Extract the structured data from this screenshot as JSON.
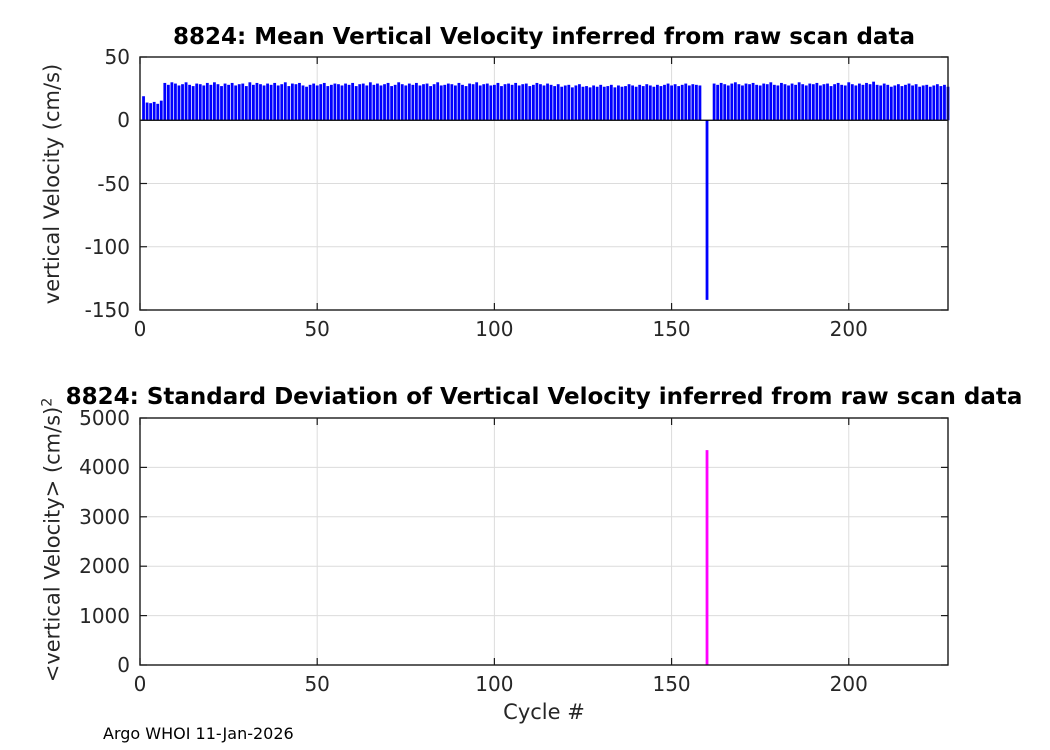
{
  "figure": {
    "footer": "Argo WHOI 11-Jan-2026",
    "colors": {
      "bar_blue": "#0000ff",
      "bar_magenta": "#ff00ff",
      "axis": "#1a1a1a",
      "grid": "#dcdcdc",
      "text": "#262626"
    }
  },
  "chart_data": [
    {
      "type": "bar",
      "title": "8824: Mean Vertical Velocity inferred from raw scan data",
      "ylabel": "vertical Velocity (cm/s)",
      "xlabel": "",
      "xlim": [
        0,
        228
      ],
      "ylim": [
        -150,
        50
      ],
      "xticks": [
        0,
        50,
        100,
        150,
        200
      ],
      "yticks": [
        -150,
        -100,
        -50,
        0,
        50
      ],
      "grid": true,
      "bar_color": "#0000ff",
      "x_start": 1,
      "values": [
        19,
        14,
        13.5,
        14.5,
        13,
        15.5,
        29.5,
        28,
        30,
        29,
        27.5,
        28.5,
        30,
        28,
        27,
        29,
        28.5,
        27.5,
        29.5,
        28,
        30,
        28.5,
        27,
        29,
        28,
        29.5,
        27.5,
        28.5,
        29,
        27,
        30,
        28,
        29.5,
        28.5,
        27.5,
        29,
        28,
        29.5,
        27.5,
        28.5,
        30,
        27,
        29,
        28.5,
        29.5,
        27.5,
        26.5,
        28,
        29,
        27.5,
        28.5,
        29.5,
        27,
        28,
        29,
        28.5,
        27.5,
        29,
        28,
        29.5,
        27,
        28.5,
        29,
        27.5,
        30,
        28,
        29,
        27.5,
        28.5,
        29.5,
        27,
        28,
        30,
        28.5,
        27.5,
        29,
        28,
        29.5,
        27.5,
        28.5,
        29,
        27,
        28.5,
        30,
        27.5,
        28,
        29,
        28.5,
        27.5,
        29.5,
        28,
        27,
        29,
        28.5,
        30,
        27.5,
        28.5,
        29,
        27.5,
        28,
        29.5,
        27,
        28.5,
        29,
        28,
        29.5,
        27.5,
        28.5,
        29,
        27,
        28,
        29.5,
        28.5,
        27.5,
        29,
        28,
        27,
        28.5,
        26.5,
        27.5,
        28,
        26,
        27.5,
        28.5,
        26.5,
        27,
        26,
        27.5,
        26.5,
        28,
        26.5,
        27,
        28,
        26,
        27.5,
        26.5,
        27,
        28.5,
        27.5,
        26.5,
        28,
        27,
        28.5,
        27.5,
        26.5,
        28,
        27,
        28,
        29,
        27.5,
        28.5,
        27,
        28,
        29,
        27.5,
        28.5,
        28,
        27.5,
        0,
        -142,
        0,
        29,
        28,
        29.5,
        28.5,
        27.5,
        29,
        30,
        28.5,
        27.5,
        29,
        28.5,
        29.5,
        28,
        27.5,
        29,
        28.5,
        30,
        28,
        27.5,
        29.5,
        28.5,
        27.5,
        29,
        28,
        30,
        28.5,
        27.5,
        29,
        28.5,
        29.5,
        27.5,
        28.5,
        29,
        27,
        28.5,
        29.5,
        28,
        27.5,
        30,
        28.5,
        27.5,
        29,
        28,
        29.5,
        28.5,
        30.5,
        28,
        27.5,
        29,
        28,
        26.5,
        27.5,
        28.5,
        27,
        28,
        29,
        27.5,
        28.5,
        26.5,
        27.5,
        28,
        26.5,
        27.5,
        28.5,
        27,
        28,
        26.5
      ]
    },
    {
      "type": "bar",
      "title": "8824: Standard Deviation of Vertical Velocity inferred from raw scan data",
      "ylabel_main": "<vertical Velocity> (cm/s)",
      "ylabel_sup": "2",
      "xlabel": "Cycle #",
      "xlim": [
        0,
        228
      ],
      "ylim": [
        0,
        5000
      ],
      "xticks": [
        0,
        50,
        100,
        150,
        200
      ],
      "yticks": [
        0,
        1000,
        2000,
        3000,
        4000,
        5000
      ],
      "grid": true,
      "bar_color": "#ff00ff",
      "x_start": 1,
      "count": 228,
      "values_default": 0,
      "spikes": [
        {
          "x": 160,
          "value": 4350
        }
      ]
    }
  ]
}
